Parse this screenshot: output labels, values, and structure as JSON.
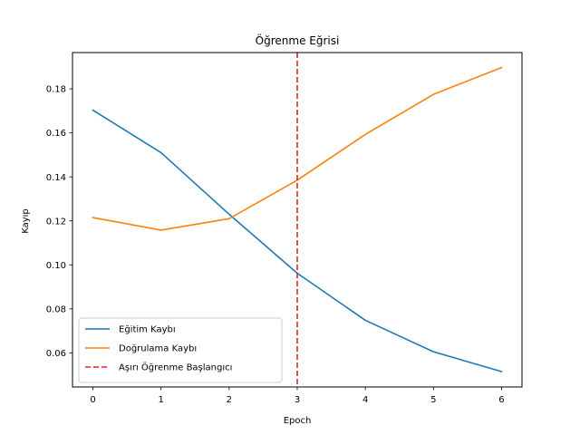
{
  "chart_data": {
    "type": "line",
    "title": "Öğrenme Eğrisi",
    "xlabel": "Epoch",
    "ylabel": "Kayıp",
    "x": [
      0,
      1,
      2,
      3,
      4,
      5,
      6
    ],
    "xlim": [
      -0.3,
      6.3
    ],
    "ylim": [
      0.0445,
      0.1965
    ],
    "xticks": [
      0,
      1,
      2,
      3,
      4,
      5,
      6
    ],
    "yticks": [
      0.06,
      0.08,
      0.1,
      0.12,
      0.14,
      0.16,
      0.18
    ],
    "ytick_labels": [
      "0.06",
      "0.08",
      "0.10",
      "0.12",
      "0.14",
      "0.16",
      "0.18"
    ],
    "grid": false,
    "legend_position": "lower-left",
    "series": [
      {
        "name": "Eğitim Kaybı",
        "color": "#1f77b4",
        "values": [
          0.1703,
          0.151,
          0.123,
          0.0962,
          0.0748,
          0.0605,
          0.0515
        ]
      },
      {
        "name": "Doğrulama Kaybı",
        "color": "#ff7f0e",
        "values": [
          0.1215,
          0.1158,
          0.121,
          0.1385,
          0.1593,
          0.1775,
          0.1897
        ]
      }
    ],
    "vline": {
      "x": 3,
      "name": "Aşırı Öğrenme Başlangıcı",
      "color": "#d62728",
      "style": "dashed"
    }
  }
}
